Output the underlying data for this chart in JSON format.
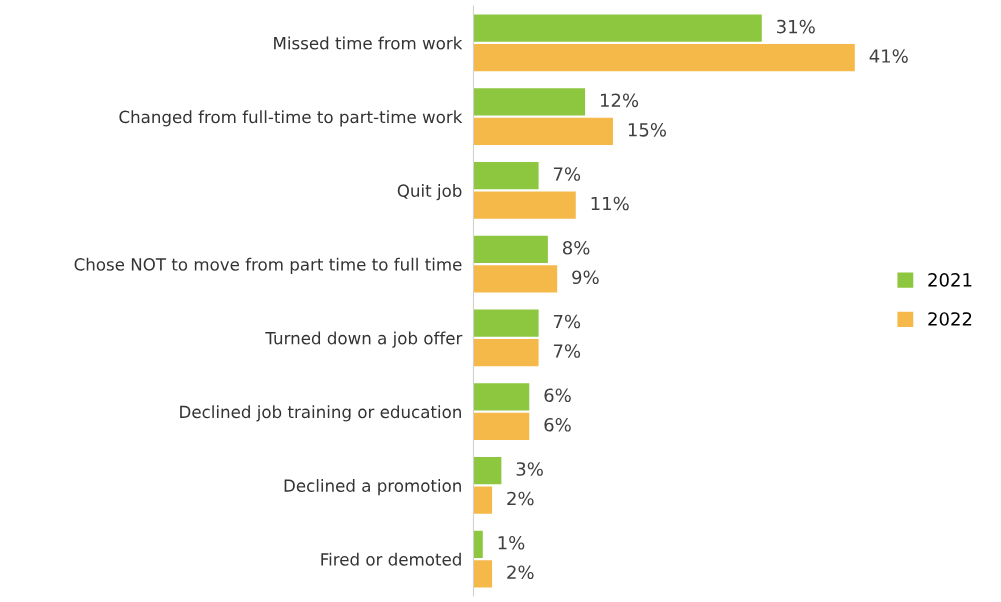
{
  "chart_data": {
    "type": "bar",
    "orientation": "horizontal",
    "categories": [
      "Missed time from work",
      "Changed from full-time to part-time work",
      "Quit job",
      "Chose NOT to move from part time to full time",
      "Turned down a job offer",
      "Declined job training or education",
      "Declined a promotion",
      "Fired or demoted"
    ],
    "series": [
      {
        "name": "2021",
        "color": "#8dc63f",
        "values": [
          31,
          12,
          7,
          8,
          7,
          6,
          3,
          1
        ],
        "value_labels": [
          "31%",
          "12%",
          "7%",
          "8%",
          "7%",
          "6%",
          "3%",
          "1%"
        ]
      },
      {
        "name": "2022",
        "color": "#f5b94a",
        "values": [
          41,
          15,
          11,
          9,
          7,
          6,
          2,
          2
        ],
        "value_labels": [
          "41%",
          "15%",
          "11%",
          "9%",
          "7%",
          "6%",
          "2%",
          "2%"
        ]
      }
    ],
    "legend": "right",
    "grid": false
  }
}
